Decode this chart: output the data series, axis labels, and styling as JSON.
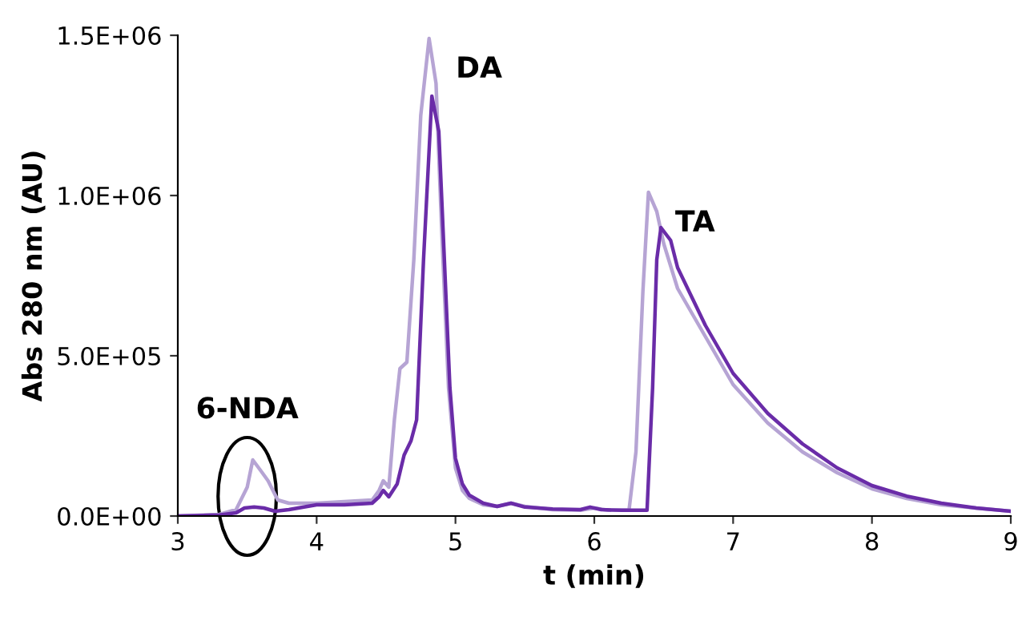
{
  "chart_data": {
    "type": "line",
    "xlabel": "t (min)",
    "ylabel": "Abs 280 nm (AU)",
    "xlim": [
      3,
      9
    ],
    "xticks": [
      3,
      4,
      5,
      6,
      7,
      8,
      9
    ],
    "ylim": [
      0,
      1500000
    ],
    "yticks": [
      {
        "value": 0,
        "label": "0.0E+00"
      },
      {
        "value": 500000,
        "label": "5.0E+05"
      },
      {
        "value": 1000000,
        "label": "1.0E+06"
      },
      {
        "value": 1500000,
        "label": "1.5E+06"
      }
    ],
    "grid": false,
    "annotations": [
      {
        "text": "6-NDA",
        "x": 3.5,
        "y": 175000
      },
      {
        "text": "DA",
        "x": 4.81,
        "y": 1490000
      },
      {
        "text": "TA",
        "x": 6.39,
        "y": 1010000
      }
    ],
    "series": [
      {
        "color": "#b6a4d4",
        "x": [
          3,
          3.3,
          3.42,
          3.5,
          3.54,
          3.6,
          3.65,
          3.72,
          3.8,
          4.0,
          4.2,
          4.4,
          4.45,
          4.48,
          4.52,
          4.56,
          4.6,
          4.65,
          4.7,
          4.75,
          4.81,
          4.86,
          4.9,
          4.95,
          5.0,
          5.05,
          5.1,
          5.2,
          5.3,
          5.4,
          5.5,
          5.7,
          5.9,
          6.0,
          6.1,
          6.25,
          6.3,
          6.35,
          6.39,
          6.45,
          6.5,
          6.6,
          6.8,
          7.0,
          7.25,
          7.5,
          7.75,
          8.0,
          8.25,
          8.5,
          8.75,
          9.0
        ],
        "values": [
          0,
          5000,
          20000,
          90000,
          175000,
          140000,
          110000,
          50000,
          40000,
          40000,
          45000,
          50000,
          80000,
          110000,
          90000,
          300000,
          460000,
          480000,
          800000,
          1250000,
          1490000,
          1350000,
          900000,
          400000,
          150000,
          80000,
          55000,
          35000,
          30000,
          40000,
          30000,
          20000,
          18000,
          25000,
          18000,
          18000,
          200000,
          700000,
          1010000,
          950000,
          850000,
          710000,
          560000,
          410000,
          290000,
          200000,
          135000,
          85000,
          55000,
          35000,
          25000,
          15000
        ]
      },
      {
        "color": "#6a2ca8",
        "x": [
          3,
          3.3,
          3.42,
          3.48,
          3.55,
          3.62,
          3.7,
          3.8,
          4.0,
          4.2,
          4.4,
          4.45,
          4.48,
          4.52,
          4.58,
          4.63,
          4.68,
          4.72,
          4.77,
          4.83,
          4.88,
          4.92,
          4.96,
          5.0,
          5.05,
          5.1,
          5.2,
          5.3,
          5.4,
          5.5,
          5.7,
          5.9,
          5.97,
          6.05,
          6.2,
          6.38,
          6.42,
          6.45,
          6.48,
          6.55,
          6.6,
          6.8,
          7.0,
          7.25,
          7.5,
          7.75,
          8.0,
          8.25,
          8.5,
          8.75,
          9.0
        ],
        "values": [
          0,
          3000,
          10000,
          25000,
          28000,
          25000,
          15000,
          20000,
          35000,
          35000,
          40000,
          60000,
          80000,
          60000,
          100000,
          190000,
          235000,
          300000,
          800000,
          1310000,
          1200000,
          800000,
          400000,
          180000,
          100000,
          65000,
          40000,
          30000,
          40000,
          28000,
          22000,
          20000,
          28000,
          20000,
          18000,
          18000,
          400000,
          800000,
          900000,
          860000,
          775000,
          595000,
          445000,
          320000,
          225000,
          150000,
          95000,
          62000,
          40000,
          25000,
          15000
        ]
      }
    ]
  }
}
